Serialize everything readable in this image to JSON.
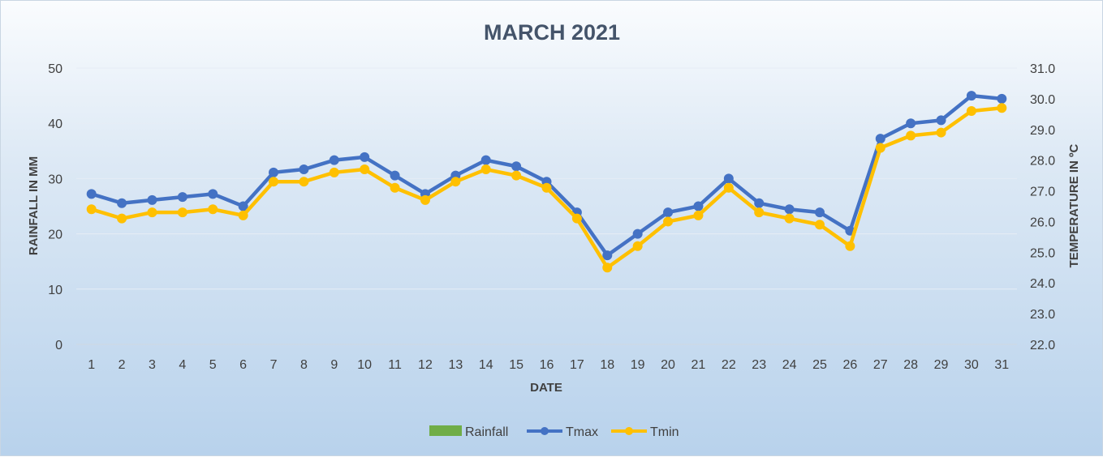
{
  "chart_data": {
    "type": "line",
    "title": "MARCH 2021",
    "xlabel": "DATE",
    "ylabel": "RAINFALL IN MM",
    "y2label": "TEMPERATURE IN ºC",
    "ylim": [
      0,
      50
    ],
    "y2lim": [
      22.0,
      31.0
    ],
    "y_ticks": [
      "0",
      "10",
      "20",
      "30",
      "40",
      "50"
    ],
    "y2_ticks": [
      "22.0",
      "23.0",
      "24.0",
      "25.0",
      "26.0",
      "27.0",
      "28.0",
      "29.0",
      "30.0",
      "31.0"
    ],
    "categories": [
      "1",
      "2",
      "3",
      "4",
      "5",
      "6",
      "7",
      "8",
      "9",
      "10",
      "11",
      "12",
      "13",
      "14",
      "15",
      "16",
      "17",
      "18",
      "19",
      "20",
      "21",
      "22",
      "23",
      "24",
      "25",
      "26",
      "27",
      "28",
      "29",
      "30",
      "31"
    ],
    "grid": true,
    "legend_position": "bottom",
    "series": [
      {
        "name": "Rainfall",
        "axis": "left",
        "type": "bar",
        "color": "#70ad47",
        "values": [
          0,
          0,
          0,
          0,
          0,
          0,
          0,
          0,
          0,
          0,
          0,
          0,
          0,
          0,
          0,
          0,
          0,
          0,
          0,
          0,
          0,
          0,
          0,
          0,
          0,
          0,
          0,
          0,
          0,
          0,
          0
        ]
      },
      {
        "name": "Tmax",
        "axis": "right",
        "type": "line",
        "color": "#4472c4",
        "values": [
          26.9,
          26.6,
          26.7,
          26.8,
          26.9,
          26.5,
          27.6,
          27.7,
          28.0,
          28.1,
          27.5,
          26.9,
          27.5,
          28.0,
          27.8,
          27.3,
          26.3,
          24.9,
          25.6,
          26.3,
          26.5,
          27.4,
          26.6,
          26.4,
          26.3,
          25.7,
          28.7,
          29.2,
          29.3,
          30.1,
          30.0
        ]
      },
      {
        "name": "Tmin",
        "axis": "right",
        "type": "line",
        "color": "#ffc000",
        "values": [
          26.4,
          26.1,
          26.3,
          26.3,
          26.4,
          26.2,
          27.3,
          27.3,
          27.6,
          27.7,
          27.1,
          26.7,
          27.3,
          27.7,
          27.5,
          27.1,
          26.1,
          24.5,
          25.2,
          26.0,
          26.2,
          27.1,
          26.3,
          26.1,
          25.9,
          25.2,
          28.4,
          28.8,
          28.9,
          29.6,
          29.7
        ]
      }
    ]
  }
}
